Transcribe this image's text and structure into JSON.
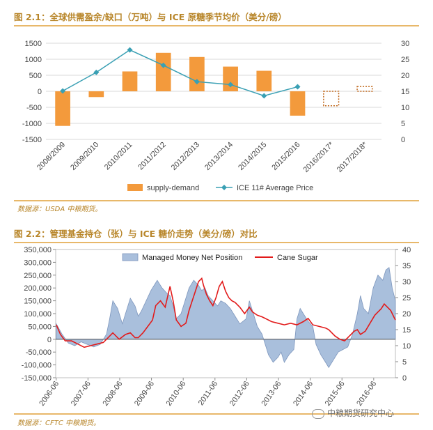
{
  "header1": {
    "title": "图 2.1：全球供需盈余/缺口（万吨）与 ICE 原糖季节均价（美分/磅）",
    "source": "数据源：USDA  中粮期货。"
  },
  "header2": {
    "title": "图 2.2：管理基金持仓（张）与 ICE 糖价走势（美分/磅）对比",
    "source": "数据源：CFTC  中粮期货。"
  },
  "watermark": {
    "text": "中粮期货研究中心"
  },
  "colors": {
    "bar": "#f39a3c",
    "price_line": "#3aa0b4",
    "area_fill": "#a9bfdc",
    "area_stroke": "#7d96bd",
    "cane": "#e21b1b"
  },
  "chart_data": [
    {
      "type": "bar",
      "categories": [
        "2008/2009",
        "2009/2010",
        "2010/2011",
        "2011/2012",
        "2012/2013",
        "2013/2014",
        "2014/2015",
        "2015/2016",
        "2016/2017*",
        "2017/2018*"
      ],
      "series": [
        {
          "name": "supply-demand",
          "type": "bar",
          "axis": "left",
          "values": [
            -1080,
            -180,
            620,
            1200,
            1070,
            770,
            640,
            -760,
            -450,
            150
          ],
          "estimated": [
            false,
            false,
            false,
            false,
            false,
            false,
            false,
            false,
            true,
            true
          ]
        },
        {
          "name": "ICE 11# Average Price",
          "type": "line",
          "axis": "right",
          "values": [
            15.1,
            20.9,
            27.9,
            23.1,
            18.0,
            17.1,
            13.6,
            16.4,
            null,
            null
          ]
        }
      ],
      "ylim_left": [
        -1500,
        1500
      ],
      "yticks_left": [
        -1500,
        -1000,
        -500,
        0,
        500,
        1000,
        1500
      ],
      "ylim_right": [
        0,
        30
      ],
      "yticks_right": [
        0,
        5,
        10,
        15,
        20,
        25,
        30
      ],
      "legend": "bottom",
      "grid": true
    },
    {
      "type": "area",
      "x_labels": [
        "2006-06",
        "2007-06",
        "2008-06",
        "2009-06",
        "2010-06",
        "2011-06",
        "2012-06",
        "2013-06",
        "2014-06",
        "2015-06",
        "2016-06"
      ],
      "x_range": [
        2006.4,
        2017.1
      ],
      "series": [
        {
          "name": "Managed Money Net Position",
          "type": "area",
          "axis": "left",
          "x": [
            2006.42,
            2006.6,
            2006.8,
            2007.0,
            2007.2,
            2007.4,
            2007.6,
            2007.8,
            2008.0,
            2008.1,
            2008.2,
            2008.35,
            2008.5,
            2008.6,
            2008.75,
            2008.9,
            2009.0,
            2009.1,
            2009.25,
            2009.4,
            2009.5,
            2009.6,
            2009.75,
            2009.9,
            2010.0,
            2010.1,
            2010.2,
            2010.35,
            2010.5,
            2010.6,
            2010.75,
            2010.9,
            2011.0,
            2011.1,
            2011.2,
            2011.35,
            2011.5,
            2011.6,
            2011.75,
            2011.9,
            2012.0,
            2012.2,
            2012.4,
            2012.5,
            2012.6,
            2012.75,
            2012.9,
            2013.0,
            2013.1,
            2013.25,
            2013.4,
            2013.5,
            2013.6,
            2013.75,
            2013.9,
            2014.0,
            2014.1,
            2014.2,
            2014.35,
            2014.5,
            2014.6,
            2014.75,
            2014.9,
            2015.0,
            2015.15,
            2015.3,
            2015.45,
            2015.6,
            2015.75,
            2015.9,
            2016.0,
            2016.1,
            2016.25,
            2016.4,
            2016.55,
            2016.7,
            2016.8,
            2016.9,
            2017.0,
            2017.1
          ],
          "values": [
            60000,
            20000,
            -15000,
            -25000,
            -10000,
            -20000,
            -30000,
            -20000,
            20000,
            80000,
            150000,
            120000,
            60000,
            100000,
            160000,
            130000,
            90000,
            110000,
            150000,
            190000,
            210000,
            230000,
            200000,
            180000,
            170000,
            130000,
            80000,
            100000,
            160000,
            200000,
            230000,
            210000,
            190000,
            200000,
            170000,
            150000,
            130000,
            150000,
            140000,
            120000,
            100000,
            60000,
            80000,
            150000,
            110000,
            50000,
            20000,
            -20000,
            -60000,
            -90000,
            -70000,
            -50000,
            -90000,
            -60000,
            -40000,
            80000,
            120000,
            100000,
            70000,
            50000,
            -20000,
            -60000,
            -90000,
            -110000,
            -80000,
            -50000,
            -40000,
            -30000,
            20000,
            100000,
            170000,
            120000,
            100000,
            200000,
            250000,
            230000,
            270000,
            280000,
            200000,
            150000
          ]
        },
        {
          "name": "Cane Sugar",
          "type": "line",
          "axis": "right",
          "x": [
            2006.42,
            2006.55,
            2006.7,
            2006.9,
            2007.1,
            2007.3,
            2007.5,
            2007.7,
            2007.9,
            2008.0,
            2008.2,
            2008.4,
            2008.6,
            2008.75,
            2008.9,
            2009.0,
            2009.15,
            2009.3,
            2009.45,
            2009.55,
            2009.7,
            2009.85,
            2010.0,
            2010.1,
            2010.2,
            2010.35,
            2010.5,
            2010.6,
            2010.7,
            2010.8,
            2010.9,
            2011.0,
            2011.05,
            2011.15,
            2011.25,
            2011.35,
            2011.45,
            2011.55,
            2011.65,
            2011.75,
            2011.85,
            2011.95,
            2012.05,
            2012.2,
            2012.35,
            2012.5,
            2012.6,
            2012.75,
            2012.9,
            2013.0,
            2013.2,
            2013.4,
            2013.6,
            2013.8,
            2014.0,
            2014.2,
            2014.35,
            2014.5,
            2014.7,
            2014.9,
            2015.0,
            2015.2,
            2015.35,
            2015.5,
            2015.65,
            2015.8,
            2015.9,
            2016.0,
            2016.15,
            2016.3,
            2016.45,
            2016.55,
            2016.65,
            2016.75,
            2016.85,
            2016.95,
            2017.05,
            2017.1
          ],
          "values": [
            16.5,
            13.5,
            11.5,
            11.5,
            10.5,
            9.5,
            10.0,
            10.5,
            11.0,
            12.0,
            14.0,
            12.0,
            13.5,
            14.0,
            12.5,
            12.5,
            14.0,
            16.0,
            18.0,
            22.5,
            24.0,
            22.0,
            28.5,
            24.0,
            18.0,
            16.0,
            17.0,
            21.0,
            24.0,
            27.0,
            30.0,
            31.0,
            29.0,
            26.0,
            24.0,
            22.5,
            25.0,
            28.5,
            30.0,
            27.0,
            25.0,
            24.0,
            23.5,
            22.0,
            20.0,
            22.0,
            20.5,
            19.5,
            19.0,
            18.5,
            17.5,
            17.0,
            16.5,
            17.0,
            16.5,
            17.5,
            18.5,
            16.5,
            16.0,
            15.5,
            15.0,
            13.0,
            12.0,
            11.5,
            13.0,
            14.5,
            15.0,
            13.5,
            14.5,
            17.0,
            19.5,
            20.5,
            21.5,
            23.0,
            22.0,
            21.0,
            19.0,
            18.0
          ]
        }
      ],
      "ylim_left": [
        -150000,
        350000
      ],
      "yticks_left": [
        -150000,
        -100000,
        -50000,
        0,
        50000,
        100000,
        150000,
        200000,
        250000,
        300000,
        350000
      ],
      "ylabels_left": [
        "-150,000",
        "-100,000",
        "-50,000",
        "0",
        "50,000",
        "100,000",
        "150,000",
        "200,000",
        "250,000",
        "300,000",
        "350,000"
      ],
      "ylim_right": [
        0,
        40
      ],
      "yticks_right": [
        0,
        5,
        10,
        15,
        20,
        25,
        30,
        35,
        40
      ],
      "legend": "top",
      "grid": false
    }
  ]
}
